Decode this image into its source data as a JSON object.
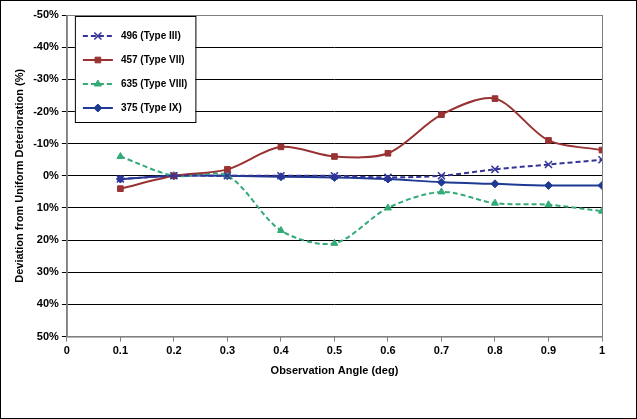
{
  "chart_data": {
    "type": "line",
    "x_label": "Observation Angle (deg)",
    "y_label": "Deviation from Uniform Deterioration (%)",
    "x": [
      0.1,
      0.2,
      0.3,
      0.4,
      0.5,
      0.6,
      0.7,
      0.8,
      0.9,
      1
    ],
    "xlim": [
      0,
      1
    ],
    "xticks": [
      0,
      0.1,
      0.2,
      0.3,
      0.4,
      0.5,
      0.6,
      0.7,
      0.8,
      0.9,
      1
    ],
    "ylim": [
      50,
      -50
    ],
    "yticks": [
      {
        "value": -50,
        "label": "-50%"
      },
      {
        "value": -40,
        "label": "-40%"
      },
      {
        "value": -30,
        "label": "-30%"
      },
      {
        "value": -20,
        "label": "-20%"
      },
      {
        "value": -10,
        "label": "-10%"
      },
      {
        "value": 0,
        "label": "0%"
      },
      {
        "value": 10,
        "label": "10%"
      },
      {
        "value": 20,
        "label": "20%"
      },
      {
        "value": 30,
        "label": "30%"
      },
      {
        "value": 40,
        "label": "40%"
      },
      {
        "value": 50,
        "label": "50%"
      }
    ],
    "grid": true,
    "legend": "top-left",
    "series": [
      {
        "name": "496 (Type III)",
        "color": "#333399",
        "marker": "x",
        "line_style": "dashed",
        "values": [
          1,
          0,
          0,
          0,
          0,
          0.5,
          0,
          -2,
          -3.5,
          -5
        ]
      },
      {
        "name": "457 (Type VII)",
        "color": "#993333",
        "marker": "square",
        "line_style": "solid",
        "values": [
          4,
          0,
          -2,
          -9,
          -6,
          -7,
          -19,
          -24,
          -11,
          -8
        ]
      },
      {
        "name": "635 (Type VIII)",
        "color": "#33AA77",
        "marker": "triangle",
        "line_style": "dashed",
        "values": [
          -6,
          0,
          0,
          17,
          21,
          10,
          5,
          8.5,
          9,
          11
        ]
      },
      {
        "name": "375 (Type IX)",
        "color": "#1F3A93",
        "marker": "diamond",
        "line_style": "solid",
        "values": [
          1,
          0,
          0,
          0.3,
          0.5,
          1,
          2,
          2.5,
          3,
          3
        ]
      }
    ]
  }
}
